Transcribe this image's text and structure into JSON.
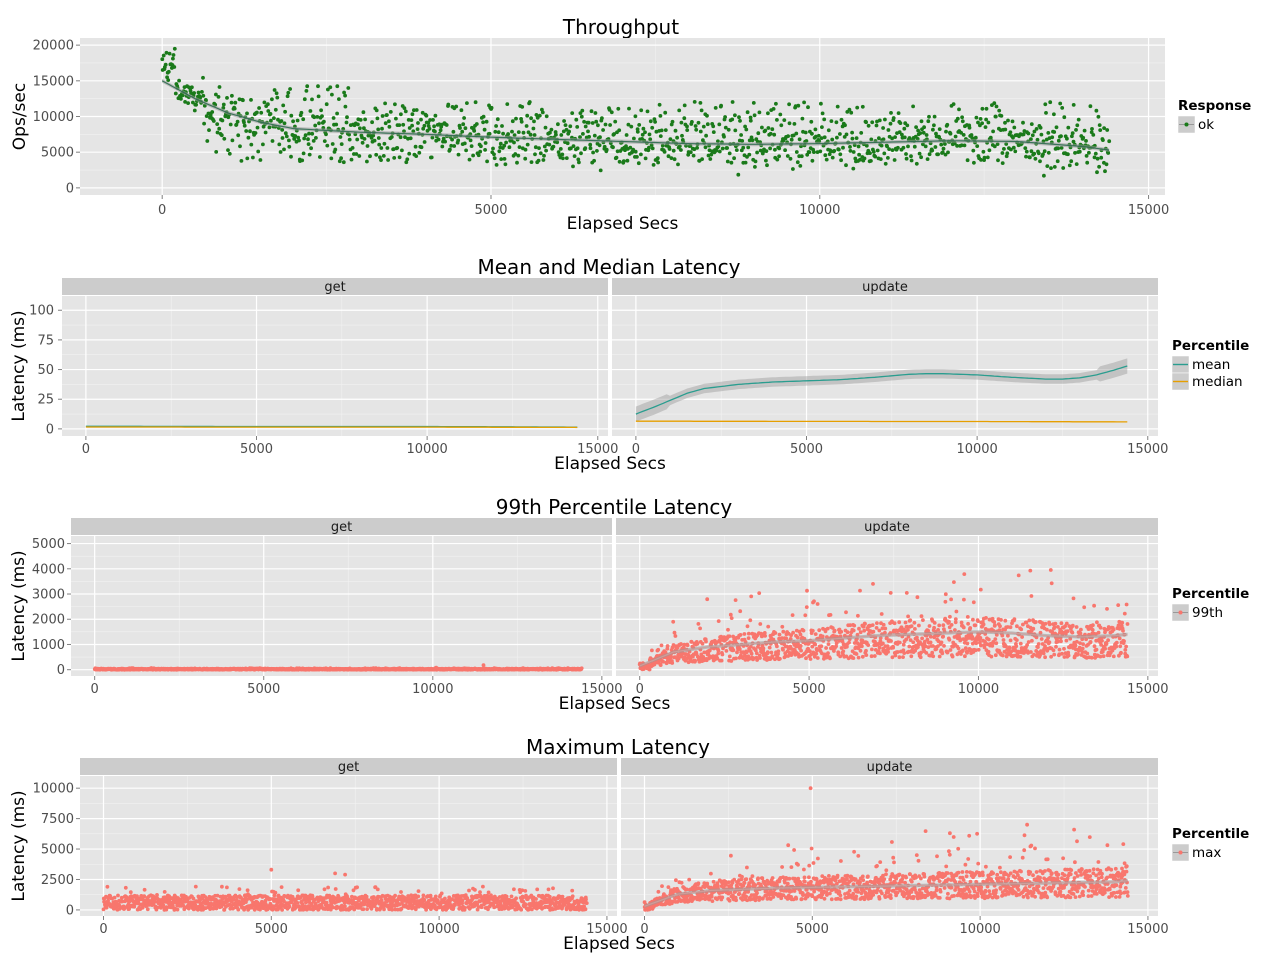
{
  "chart_data": [
    {
      "id": "throughput",
      "type": "scatter",
      "title": "Throughput",
      "xlabel": "Elapsed Secs",
      "ylabel": "Ops/sec",
      "xlim": [
        -1250,
        15250
      ],
      "ylim": [
        -1000,
        21000
      ],
      "xticks": [
        0,
        5000,
        10000,
        15000
      ],
      "yticks": [
        0,
        5000,
        10000,
        15000,
        20000
      ],
      "grid": true,
      "legend": {
        "title": "Response",
        "position": "right",
        "items": [
          {
            "label": "ok",
            "color": "#1a7a1a"
          }
        ]
      },
      "series": [
        {
          "name": "ok",
          "color": "#1a7a1a",
          "point_count": 1400,
          "x_range": [
            0,
            14400
          ],
          "band_low": 3500,
          "band_high": 12500,
          "smooth": {
            "x": [
              0,
              500,
              1000,
              1500,
              2000,
              3000,
              4000,
              5000,
              6000,
              7000,
              8000,
              9000,
              10000,
              11000,
              12000,
              13000,
              14000,
              14400
            ],
            "y": [
              15000,
              12500,
              10500,
              9200,
              8300,
              7800,
              7500,
              7100,
              6800,
              6500,
              6200,
              6100,
              6200,
              6400,
              6600,
              6500,
              5800,
              5300
            ]
          }
        }
      ]
    },
    {
      "id": "mean-median",
      "type": "line",
      "title": "Mean and Median Latency",
      "xlabel": "Elapsed Secs",
      "ylabel": "Latency (ms)",
      "ylim": [
        -6,
        112
      ],
      "yticks": [
        0,
        25,
        50,
        75,
        100
      ],
      "xticks": [
        0,
        5000,
        10000,
        15000
      ],
      "grid": true,
      "legend": {
        "title": "Percentile",
        "position": "right",
        "items": [
          {
            "label": "mean",
            "color": "#2a9d8f"
          },
          {
            "label": "median",
            "color": "#e69f00"
          }
        ]
      },
      "facets": [
        {
          "label": "get",
          "xlim": [
            -700,
            15300
          ],
          "series": [
            {
              "name": "mean",
              "color": "#2a9d8f",
              "x": [
                0,
                5000,
                10000,
                14400
              ],
              "y": [
                2.2,
                2.0,
                2.0,
                1.5
              ]
            },
            {
              "name": "median",
              "color": "#e69f00",
              "x": [
                0,
                5000,
                10000,
                14400
              ],
              "y": [
                1.6,
                1.5,
                1.5,
                1.2
              ]
            }
          ]
        },
        {
          "label": "update",
          "xlim": [
            -700,
            15300
          ],
          "series": [
            {
              "name": "mean",
              "color": "#2a9d8f",
              "band": 4,
              "x": [
                0,
                500,
                1000,
                1500,
                2000,
                3000,
                4000,
                5000,
                6000,
                7000,
                8000,
                8500,
                9000,
                10000,
                11000,
                12000,
                12500,
                13000,
                13500,
                14000,
                14400
              ],
              "y": [
                12.5,
                18,
                24,
                30,
                34,
                37.5,
                39.5,
                40.5,
                41.5,
                43.5,
                46,
                46.5,
                46.5,
                45.5,
                43.5,
                42,
                42,
                43,
                45.5,
                49.5,
                53
              ]
            },
            {
              "name": "median",
              "color": "#e69f00",
              "x": [
                0,
                5000,
                10000,
                14400
              ],
              "y": [
                6.5,
                6.3,
                6.2,
                5.9
              ]
            }
          ]
        }
      ]
    },
    {
      "id": "p99",
      "type": "scatter",
      "title": "99th Percentile Latency",
      "xlabel": "Elapsed Secs",
      "ylabel": "Latency (ms)",
      "ylim": [
        -250,
        5300
      ],
      "yticks": [
        0,
        1000,
        2000,
        3000,
        4000,
        5000
      ],
      "xticks": [
        0,
        5000,
        10000,
        15000
      ],
      "grid": true,
      "legend": {
        "title": "Percentile",
        "position": "right",
        "items": [
          {
            "label": "99th",
            "color": "#f8766d"
          }
        ]
      },
      "facets": [
        {
          "label": "get",
          "xlim": [
            -700,
            15300
          ],
          "series": [
            {
              "name": "99th",
              "color": "#f8766d",
              "point_count": 1400,
              "x_range": [
                0,
                14400
              ],
              "band_low": 0,
              "band_high": 40,
              "outliers": {
                "x": [
                  10100,
                  11500
                ],
                "y": [
                  80,
                  180
                ]
              }
            }
          ]
        },
        {
          "label": "update",
          "xlim": [
            -700,
            15300
          ],
          "series": [
            {
              "name": "99th",
              "color": "#f8766d",
              "point_count": 1400,
              "x_range": [
                0,
                14400
              ],
              "smooth": {
                "x": [
                  0,
                  1000,
                  2000,
                  3000,
                  4000,
                  5000,
                  6000,
                  7000,
                  8000,
                  9000,
                  10000,
                  11000,
                  12000,
                  13000,
                  14000,
                  14400
                ],
                "y": [
                  150,
                  700,
                  900,
                  1000,
                  1100,
                  1150,
                  1250,
                  1350,
                  1400,
                  1450,
                  1500,
                  1450,
                  1350,
                  1300,
                  1350,
                  1400
                ]
              }
            }
          ]
        }
      ]
    },
    {
      "id": "max",
      "type": "scatter",
      "title": "Maximum Latency",
      "xlabel": "Elapsed Secs",
      "ylabel": "Latency (ms)",
      "ylim": [
        -500,
        11000
      ],
      "yticks": [
        0,
        2500,
        5000,
        7500,
        10000
      ],
      "xticks": [
        0,
        5000,
        10000,
        15000
      ],
      "grid": true,
      "legend": {
        "title": "Percentile",
        "position": "right",
        "items": [
          {
            "label": "max",
            "color": "#f8766d"
          }
        ]
      },
      "facets": [
        {
          "label": "get",
          "xlim": [
            -700,
            15300
          ],
          "series": [
            {
              "name": "max",
              "color": "#f8766d",
              "point_count": 1400,
              "x_range": [
                0,
                14400
              ],
              "band_low": 0,
              "band_high": 1200,
              "outliers": {
                "x": [
                  5000,
                  6900,
                  7200
                ],
                "y": [
                  3300,
                  3000,
                  2900
                ]
              }
            }
          ]
        },
        {
          "label": "update",
          "xlim": [
            -700,
            15300
          ],
          "series": [
            {
              "name": "max",
              "color": "#f8766d",
              "point_count": 1400,
              "x_range": [
                0,
                14400
              ],
              "outliers": {
                "x": [
                  4950,
                  11400,
                  12800,
                  9100
                ],
                "y": [
                  10000,
                  7000,
                  6600,
                  6300
                ]
              },
              "smooth": {
                "x": [
                  0,
                  1000,
                  2000,
                  4000,
                  6000,
                  8000,
                  10000,
                  12000,
                  14000,
                  14400
                ],
                "y": [
                  300,
                  1300,
                  1600,
                  1800,
                  1900,
                  2000,
                  2100,
                  2200,
                  2300,
                  2400
                ]
              }
            }
          ]
        }
      ]
    }
  ]
}
